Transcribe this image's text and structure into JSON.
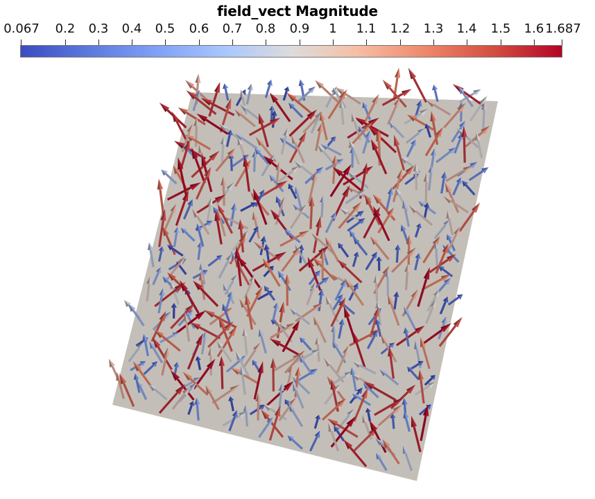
{
  "colorbar": {
    "title": "field_vect Magnitude",
    "min_label": "0.067",
    "max_label": "1.687",
    "tick_labels": [
      "0.2",
      "0.3",
      "0.4",
      "0.5",
      "0.6",
      "0.7",
      "0.8",
      "0.9",
      "1",
      "1.1",
      "1.2",
      "1.3",
      "1.4",
      "1.5",
      "1.6"
    ],
    "range": [
      0.067,
      1.687
    ],
    "colormap": "coolwarm",
    "low_color": "#3b4cc0",
    "mid_color": "#dddcdc",
    "high_color": "#b40426"
  },
  "scene": {
    "plane_color": "#c3bfb8",
    "background_color": "#ffffff",
    "glyph_type": "arrow-icon"
  }
}
